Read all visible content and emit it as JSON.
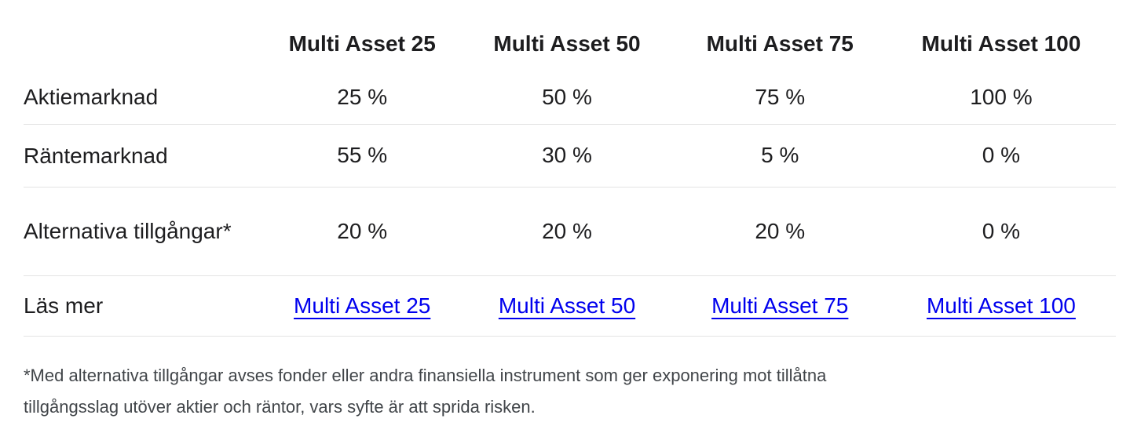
{
  "colors": {
    "background": "#ffffff",
    "table-text": "#1d1d1f",
    "footnote-text": "#414549",
    "divider": "#e4e4e4",
    "link": "#0000ee"
  },
  "table": {
    "columns": [
      "",
      "Multi Asset 25",
      "Multi Asset 50",
      "Multi Asset 75",
      "Multi Asset 100"
    ],
    "rows": [
      {
        "label": "Aktiemarknad",
        "values": [
          "25 %",
          "50 %",
          "75 %",
          "100 %"
        ]
      },
      {
        "label": "Räntemarknad",
        "values": [
          "55 %",
          "30 %",
          "5 %",
          "0 %"
        ]
      },
      {
        "label": "Alternativa tillgångar*",
        "values": [
          "20 %",
          "20 %",
          "20 %",
          "0 %"
        ]
      }
    ],
    "links_row": {
      "label": "Läs mer",
      "links": [
        "Multi Asset 25",
        "Multi Asset 50",
        "Multi Asset 75",
        "Multi Asset 100"
      ]
    }
  },
  "footnote": "*Med alternativa tillgångar avses fonder eller andra finansiella instrument som ger exponering mot tillåtna tillgångsslag utöver aktier och räntor, vars syfte är att sprida risken.",
  "chart_data": {
    "type": "table",
    "columns": [
      "Multi Asset 25",
      "Multi Asset 50",
      "Multi Asset 75",
      "Multi Asset 100"
    ],
    "rows": [
      {
        "label": "Aktiemarknad",
        "values_percent": [
          25,
          50,
          75,
          100
        ]
      },
      {
        "label": "Räntemarknad",
        "values_percent": [
          55,
          30,
          5,
          0
        ]
      },
      {
        "label": "Alternativa tillgångar*",
        "values_percent": [
          20,
          20,
          20,
          0
        ]
      }
    ]
  }
}
